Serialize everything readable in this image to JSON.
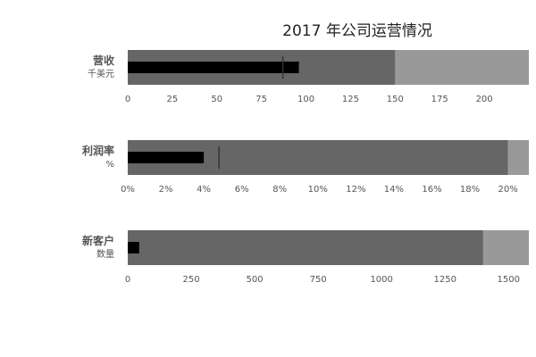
{
  "chart_data": {
    "type": "bullet",
    "title": "2017 年公司运营情况",
    "colors": {
      "range_dark": "#666666",
      "range_light": "#999999",
      "bar": "#000000",
      "marker": "#333333"
    },
    "bullets": [
      {
        "label": "营收",
        "sublabel": "千美元",
        "ranges": [
          150,
          225
        ],
        "measure": 96,
        "marker": 87,
        "axis_max": 225,
        "ticks": [
          0,
          25,
          50,
          75,
          100,
          125,
          150,
          175,
          200
        ],
        "tick_labels": [
          "0",
          "25",
          "50",
          "75",
          "100",
          "125",
          "150",
          "175",
          "200"
        ]
      },
      {
        "label": "利润率",
        "sublabel": "%",
        "ranges": [
          20,
          21.1
        ],
        "measure": 4,
        "marker": 4.8,
        "axis_max": 21.1,
        "ticks": [
          0,
          2,
          4,
          6,
          8,
          10,
          12,
          14,
          16,
          18,
          20
        ],
        "tick_labels": [
          "0%",
          "2%",
          "4%",
          "6%",
          "8%",
          "10%",
          "12%",
          "14%",
          "16%",
          "18%",
          "20%"
        ]
      },
      {
        "label": "新客户",
        "sublabel": "数量",
        "ranges": [
          1400,
          1580
        ],
        "measure": 45,
        "marker": null,
        "axis_max": 1580,
        "ticks": [
          0,
          250,
          500,
          750,
          1000,
          1250,
          1500
        ],
        "tick_labels": [
          "0",
          "250",
          "500",
          "750",
          "1000",
          "1250",
          "1500"
        ]
      }
    ]
  }
}
